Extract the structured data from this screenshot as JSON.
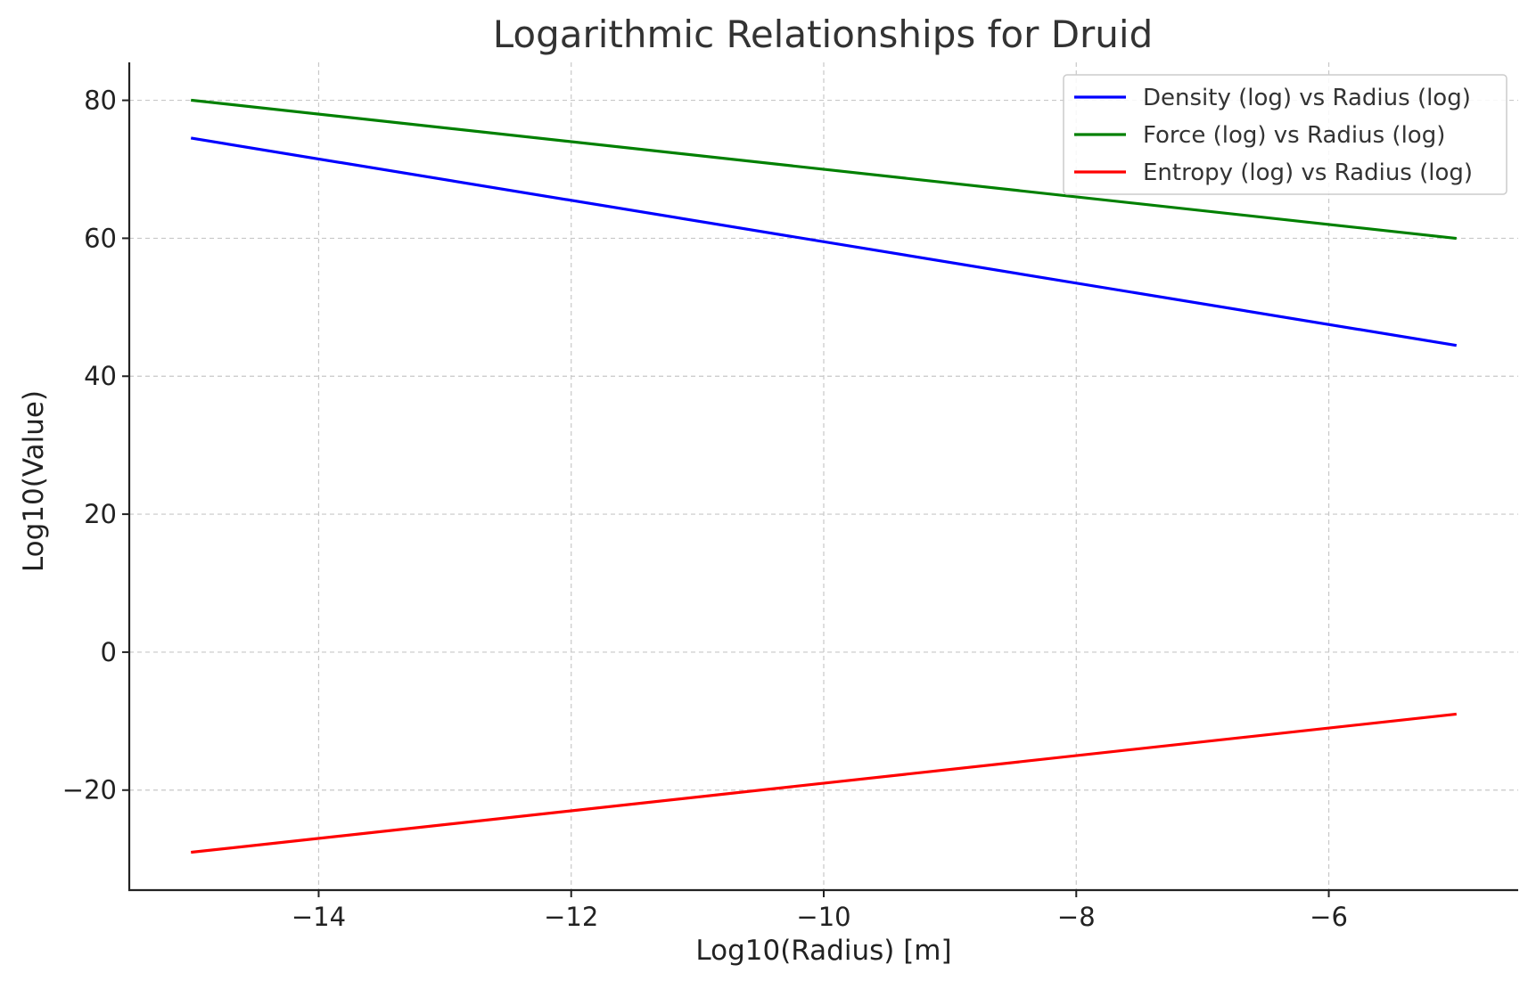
{
  "chart_data": {
    "type": "line",
    "title": "Logarithmic Relationships for Druid",
    "xlabel": "Log10(Radius) [m]",
    "ylabel": "Log10(Value)",
    "xlim": [
      -15.5,
      -4.5
    ],
    "ylim": [
      -34.5,
      85.5
    ],
    "xticks": [
      -14,
      -12,
      -10,
      -8,
      -6
    ],
    "xtick_labels": [
      "−14",
      "−12",
      "−10",
      "−8",
      "−6"
    ],
    "yticks": [
      -20,
      0,
      20,
      40,
      60,
      80
    ],
    "ytick_labels": [
      "−20",
      "0",
      "20",
      "40",
      "60",
      "80"
    ],
    "grid": true,
    "legend_position": "top-right",
    "series": [
      {
        "name": "Density (log) vs Radius (log)",
        "color": "#0000ff",
        "x": [
          -15,
          -5
        ],
        "y": [
          74.5,
          44.5
        ]
      },
      {
        "name": "Force (log) vs Radius (log)",
        "color": "#008000",
        "x": [
          -15,
          -5
        ],
        "y": [
          80,
          60
        ]
      },
      {
        "name": "Entropy (log) vs Radius (log)",
        "color": "#ff0000",
        "x": [
          -15,
          -5
        ],
        "y": [
          -29,
          -9
        ]
      }
    ]
  }
}
